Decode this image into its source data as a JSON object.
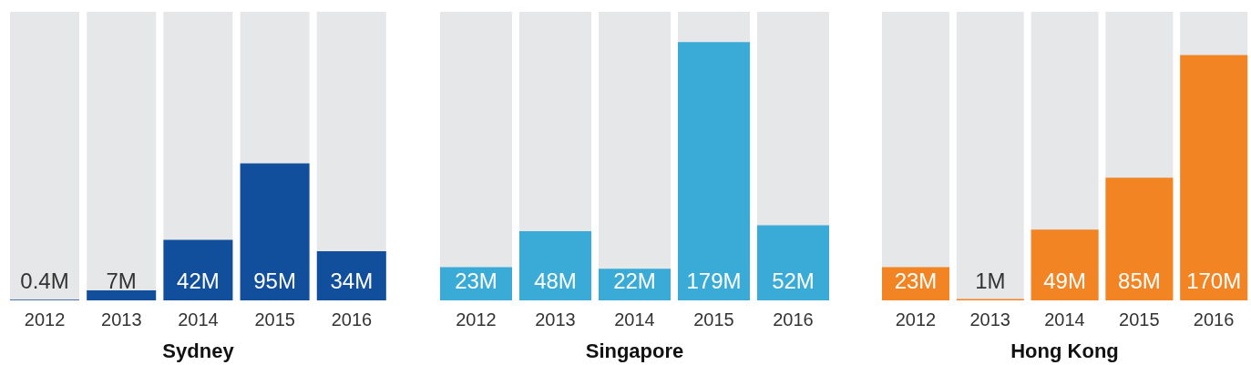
{
  "chart_data": [
    {
      "type": "bar",
      "title": "Sydney",
      "categories": [
        "2012",
        "2013",
        "2014",
        "2015",
        "2016"
      ],
      "values": [
        0.4,
        7,
        42,
        95,
        34
      ],
      "color": "#114f9c",
      "value_labels": [
        "0.4M",
        "7M",
        "42M",
        "95M",
        "34M"
      ],
      "ylim": [
        0,
        200
      ],
      "tick_labels": "x"
    },
    {
      "type": "bar",
      "title": "Singapore",
      "categories": [
        "2012",
        "2013",
        "2014",
        "2015",
        "2016"
      ],
      "values": [
        23,
        48,
        22,
        179,
        52
      ],
      "color": "#3aabd6",
      "value_labels": [
        "23M",
        "48M",
        "22M",
        "179M",
        "52M"
      ],
      "ylim": [
        0,
        200
      ],
      "tick_labels": "x"
    },
    {
      "type": "bar",
      "title": "Hong Kong",
      "categories": [
        "2012",
        "2013",
        "2014",
        "2015",
        "2016"
      ],
      "values": [
        23,
        1,
        49,
        85,
        170
      ],
      "color": "#f28424",
      "value_labels": [
        "23M",
        "1M",
        "49M",
        "85M",
        "170M"
      ],
      "ylim": [
        0,
        200
      ],
      "tick_labels": "x"
    }
  ]
}
